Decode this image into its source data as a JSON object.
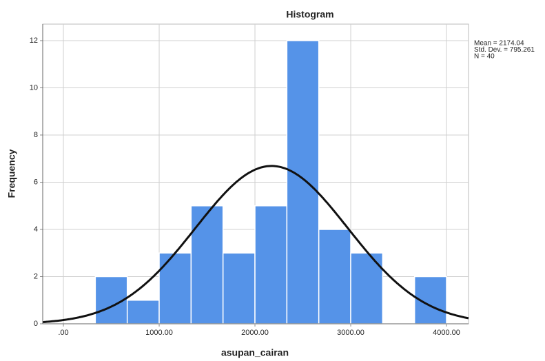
{
  "chart_data": {
    "type": "histogram",
    "title": "Histogram",
    "x_label": "asupan_cairan",
    "y_label": "Frequency",
    "bins": [
      333.33,
      666.67,
      1000,
      1333.33,
      1666.67,
      2000,
      2333.33,
      2666.67,
      3000,
      3333.33,
      3666.67,
      4000
    ],
    "values": [
      2,
      1,
      3,
      5,
      3,
      5,
      12,
      4,
      3,
      0,
      2
    ],
    "color": "#5593e8",
    "xlim": [
      -216,
      4230
    ],
    "xticks": [
      {
        "value": 0,
        "label": ".00"
      },
      {
        "value": 1000,
        "label": "1000.00"
      },
      {
        "value": 2000,
        "label": "2000.00"
      },
      {
        "value": 3000,
        "label": "3000.00"
      },
      {
        "value": 4000,
        "label": "4000.00"
      }
    ],
    "ylim": [
      0,
      12.7
    ],
    "yticks": [
      0,
      2,
      4,
      6,
      8,
      10,
      12
    ],
    "grid": true,
    "stats": [
      {
        "value": 2174.04,
        "label": "Mean = 2174.04"
      },
      {
        "value": 795.261,
        "label": "Std. Dev. = 795.261"
      },
      {
        "value": 40,
        "label": "N = 40"
      }
    ]
  }
}
